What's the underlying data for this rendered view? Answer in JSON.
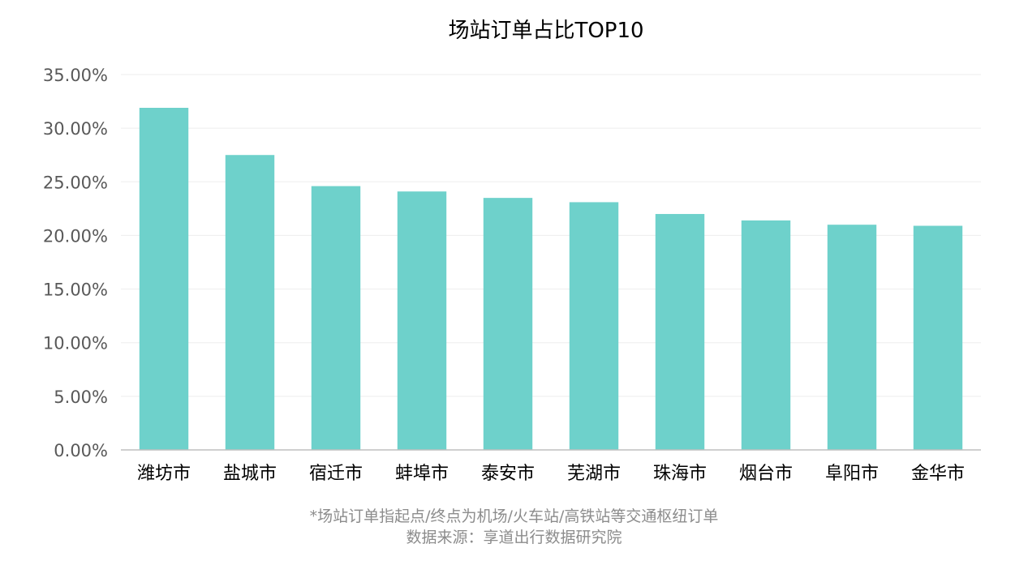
{
  "chart_data": {
    "type": "bar",
    "title": "场站订单占比TOP10",
    "categories": [
      "潍坊市",
      "盐城市",
      "宿迁市",
      "蚌埠市",
      "泰安市",
      "芜湖市",
      "珠海市",
      "烟台市",
      "阜阳市",
      "金华市"
    ],
    "values": [
      31.9,
      27.5,
      24.6,
      24.1,
      23.5,
      23.1,
      22.0,
      21.4,
      21.0,
      20.9
    ],
    "ylim": [
      0,
      35
    ],
    "yticks": [
      0,
      5,
      10,
      15,
      20,
      25,
      30,
      35
    ],
    "ytick_labels": [
      "0.00%",
      "5.00%",
      "10.00%",
      "15.00%",
      "20.00%",
      "25.00%",
      "30.00%",
      "35.00%"
    ],
    "xlabel": "",
    "ylabel": "",
    "grid": true,
    "legend": "none",
    "colors": {
      "bar": "#6ed1cb",
      "grid": "#eeeeee",
      "axis": "#bfbfbf"
    }
  },
  "footnotes": {
    "line1": "*场站订单指起点/终点为机场/火车站/高铁站等交通枢纽订单",
    "line2": "数据来源：享道出行数据研究院"
  }
}
